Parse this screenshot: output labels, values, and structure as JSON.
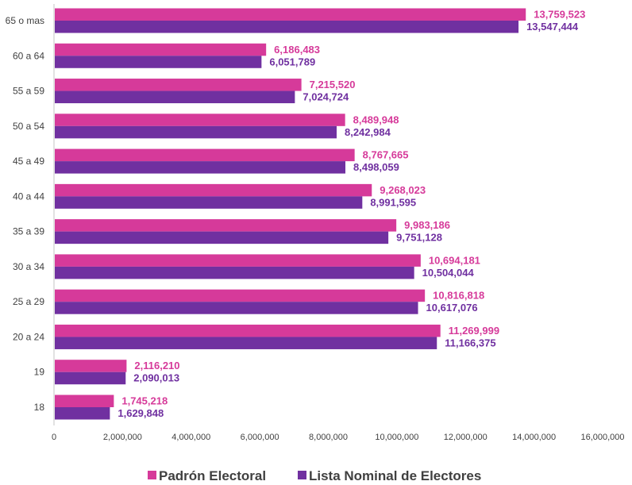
{
  "chart_data": {
    "type": "bar",
    "orientation": "horizontal",
    "categories": [
      "65 o mas",
      "60 a 64",
      "55 a 59",
      "50 a 54",
      "45 a 49",
      "40 a 44",
      "35 a 39",
      "30 a 34",
      "25 a 29",
      "20 a 24",
      "19",
      "18"
    ],
    "series": [
      {
        "name": "Padrón Electoral",
        "color": "#D63A9A",
        "values": [
          13759523,
          6186483,
          7215520,
          8489948,
          8767665,
          9268023,
          9983186,
          10694181,
          10816818,
          11269999,
          2116210,
          1745218
        ],
        "labels": [
          "13,759,523",
          "6,186,483",
          "7,215,520",
          "8,489,948",
          "8,767,665",
          "9,268,023",
          "9,983,186",
          "10,694,181",
          "10,816,818",
          "11,269,999",
          "2,116,210",
          "1,745,218"
        ]
      },
      {
        "name": "Lista Nominal de Electores",
        "color": "#7030A0",
        "values": [
          13547444,
          6051789,
          7024724,
          8242984,
          8498059,
          8991595,
          9751128,
          10504044,
          10617076,
          11166375,
          2090013,
          1629848
        ],
        "labels": [
          "13,547,444",
          "6,051,789",
          "7,024,724",
          "8,242,984",
          "8,498,059",
          "8,991,595",
          "9,751,128",
          "10,504,044",
          "10,617,076",
          "11,166,375",
          "2,090,013",
          "1,629,848"
        ]
      }
    ],
    "xlim": [
      0,
      16000000
    ],
    "xticks": [
      "0",
      "2,000,000",
      "4,000,000",
      "6,000,000",
      "8,000,000",
      "10,000,000",
      "12,000,000",
      "14,000,000",
      "16,000,000"
    ],
    "grid": false,
    "legend": "bottom"
  }
}
